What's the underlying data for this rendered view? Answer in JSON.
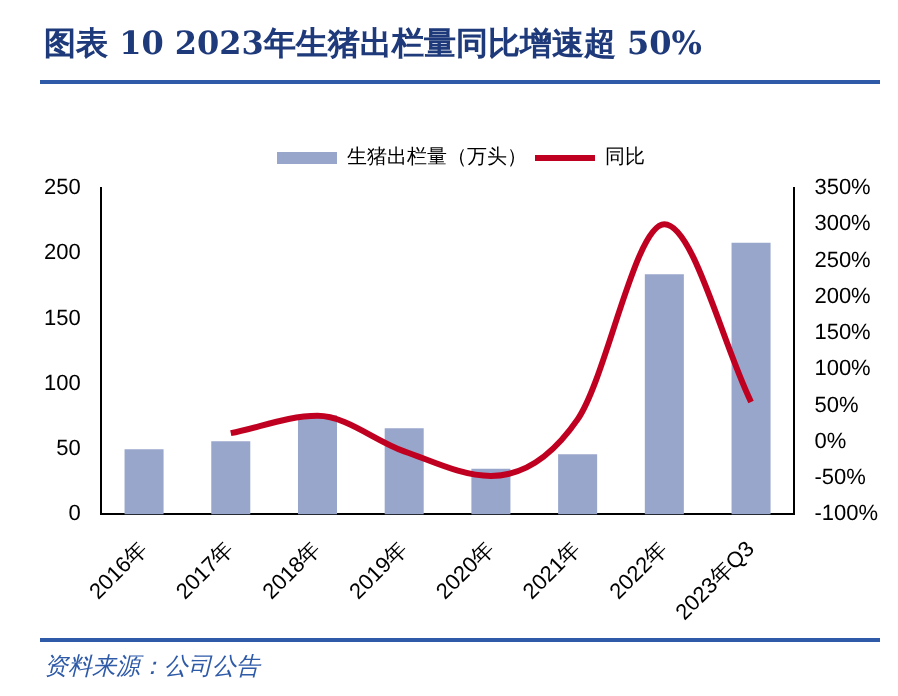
{
  "chart_data": {
    "type": "bar",
    "title": "图表 10  2023年生猪出栏量同比增速超 50%",
    "categories": [
      "2016年",
      "2017年",
      "2018年",
      "2019年",
      "2020年",
      "2021年",
      "2022年",
      "2023年Q3"
    ],
    "series": [
      {
        "name": "生猪出栏量（万头）",
        "color": "#98a6cb",
        "values": [
          50,
          56,
          76,
          66,
          35,
          46,
          184,
          208
        ]
      },
      {
        "name": "同比",
        "type": "line",
        "axis": "y2",
        "color": "#c00020",
        "values": [
          null,
          12,
          36,
          -13,
          -47,
          31,
          300,
          55
        ]
      }
    ],
    "ylim": [
      0,
      250
    ],
    "yticks": [
      0,
      50,
      100,
      150,
      200,
      250
    ],
    "y2lim": [
      -100,
      350
    ],
    "y2ticks": [
      {
        "value": -100,
        "label": "-100%"
      },
      {
        "value": -50,
        "label": "-50%"
      },
      {
        "value": 0,
        "label": "0%"
      },
      {
        "value": 50,
        "label": "50%"
      },
      {
        "value": 100,
        "label": "100%"
      },
      {
        "value": 150,
        "label": "150%"
      },
      {
        "value": 200,
        "label": "200%"
      },
      {
        "value": 250,
        "label": "250%"
      },
      {
        "value": 300,
        "label": "300%"
      },
      {
        "value": 350,
        "label": "350%"
      }
    ],
    "grid": false,
    "legend": "top",
    "marker": "none",
    "annotations": [
      "资料来源：公司公告"
    ]
  }
}
